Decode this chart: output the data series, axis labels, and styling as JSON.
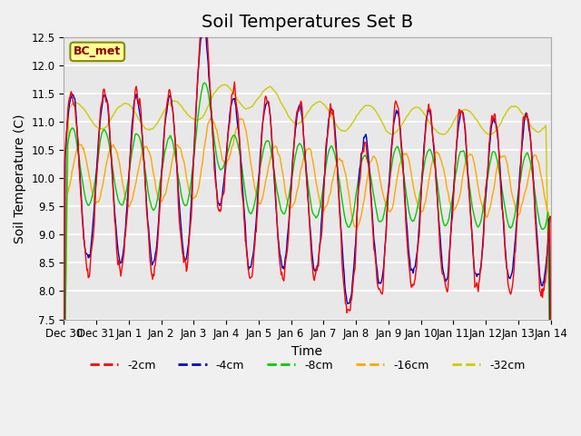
{
  "title": "Soil Temperatures Set B",
  "xlabel": "Time",
  "ylabel": "Soil Temperature (C)",
  "ylim": [
    7.5,
    12.5
  ],
  "yticks": [
    7.5,
    8.0,
    8.5,
    9.0,
    9.5,
    10.0,
    10.5,
    11.0,
    11.5,
    12.0,
    12.5
  ],
  "xtick_labels": [
    "Dec 30",
    "Dec 31",
    "Jan 1",
    "Jan 2",
    "Jan 3",
    "Jan 4",
    "Jan 5",
    "Jan 6",
    "Jan 7",
    "Jan 8",
    "Jan 9",
    "Jan 10",
    "Jan 11",
    "Jan 12",
    "Jan 13",
    "Jan 14"
  ],
  "num_days": 15,
  "points_per_day": 48,
  "annotation_text": "BC_met",
  "annotation_color": "#8B0000",
  "annotation_bg": "#FFFF99",
  "colors": {
    "-2cm": "#FF0000",
    "-4cm": "#0000CC",
    "-8cm": "#00CC00",
    "-16cm": "#FFA500",
    "-32cm": "#CCCC00"
  },
  "legend_labels": [
    "-2cm",
    "-4cm",
    "-8cm",
    "-16cm",
    "-32cm"
  ],
  "background_color": "#E8E8E8",
  "grid_color": "#FFFFFF",
  "title_fontsize": 14,
  "axis_label_fontsize": 10,
  "tick_fontsize": 8.5
}
